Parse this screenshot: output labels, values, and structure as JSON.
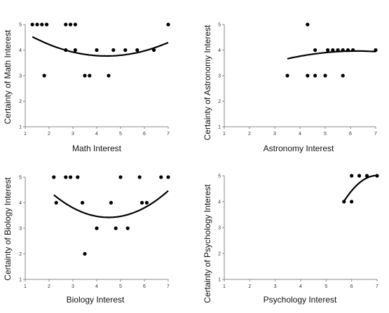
{
  "chart_data": [
    {
      "type": "scatter",
      "xlabel": "Math Interest",
      "ylabel": "Certainty of Math Interest",
      "xlim": [
        1,
        7
      ],
      "ylim": [
        1,
        5
      ],
      "xticks": [
        "1",
        "2",
        "3",
        "4",
        "5",
        "6",
        "7"
      ],
      "yticks": [
        "1",
        "2",
        "3",
        "4",
        "5"
      ],
      "points": [
        [
          1.3,
          5
        ],
        [
          1.5,
          5
        ],
        [
          1.7,
          5
        ],
        [
          1.9,
          5
        ],
        [
          2.7,
          5
        ],
        [
          2.9,
          5
        ],
        [
          3.1,
          5
        ],
        [
          1.8,
          3
        ],
        [
          2.7,
          4
        ],
        [
          3.1,
          4
        ],
        [
          3.5,
          3
        ],
        [
          3.7,
          3
        ],
        [
          4.0,
          4
        ],
        [
          4.5,
          3
        ],
        [
          4.7,
          4
        ],
        [
          5.2,
          4
        ],
        [
          5.7,
          4
        ],
        [
          6.4,
          4
        ],
        [
          7.0,
          5
        ]
      ],
      "trend": {
        "type": "quadratic",
        "xrange": [
          1.3,
          7
        ],
        "coef": [
          0.0781,
          -0.6875,
          5.2813
        ]
      }
    },
    {
      "type": "scatter",
      "xlabel": "Astronomy Interest",
      "ylabel": "Certainty of Astronomy Interest",
      "xlim": [
        1,
        7
      ],
      "ylim": [
        1,
        5
      ],
      "xticks": [
        "1",
        "2",
        "3",
        "4",
        "5",
        "6",
        "7"
      ],
      "yticks": [
        "1",
        "2",
        "3",
        "4",
        "5"
      ],
      "points": [
        [
          3.5,
          3
        ],
        [
          4.3,
          3
        ],
        [
          4.6,
          3
        ],
        [
          5.0,
          3
        ],
        [
          5.7,
          3
        ],
        [
          4.6,
          4
        ],
        [
          5.1,
          4
        ],
        [
          5.3,
          4
        ],
        [
          5.5,
          4
        ],
        [
          5.7,
          4
        ],
        [
          5.9,
          4
        ],
        [
          6.1,
          4
        ],
        [
          7.0,
          4
        ],
        [
          4.3,
          5
        ]
      ],
      "trend": {
        "type": "quadratic",
        "xrange": [
          3.5,
          7
        ],
        "coef": [
          -0.04,
          0.5,
          2.4
        ]
      }
    },
    {
      "type": "scatter",
      "xlabel": "Biology Interest",
      "ylabel": "Certainty of Biology Interest",
      "xlim": [
        1,
        7
      ],
      "ylim": [
        1,
        5
      ],
      "xticks": [
        "1",
        "2",
        "3",
        "4",
        "5",
        "6",
        "7"
      ],
      "yticks": [
        "1",
        "2",
        "3",
        "4",
        "5"
      ],
      "points": [
        [
          2.2,
          5
        ],
        [
          2.7,
          5
        ],
        [
          2.9,
          5
        ],
        [
          3.2,
          5
        ],
        [
          5.0,
          5
        ],
        [
          5.8,
          5
        ],
        [
          6.7,
          5
        ],
        [
          7.0,
          5
        ],
        [
          2.3,
          4
        ],
        [
          3.4,
          4
        ],
        [
          4.6,
          4
        ],
        [
          5.9,
          4
        ],
        [
          6.1,
          4
        ],
        [
          4.0,
          3
        ],
        [
          4.8,
          3
        ],
        [
          5.3,
          3
        ],
        [
          3.5,
          2
        ]
      ],
      "trend": {
        "type": "quadratic",
        "xrange": [
          2.2,
          7
        ],
        "coef": [
          0.1667,
          -1.5,
          6.8
        ]
      }
    },
    {
      "type": "scatter",
      "xlabel": "Psychology Interest",
      "ylabel": "Certainty of Psychology Interest",
      "xlim": [
        1,
        7
      ],
      "ylim": [
        1,
        5
      ],
      "xticks": [
        "1",
        "2",
        "3",
        "4",
        "5",
        "6",
        "7"
      ],
      "yticks": [
        "1",
        "2",
        "3",
        "4",
        "5"
      ],
      "points": [
        [
          5.7,
          4
        ],
        [
          6.0,
          4
        ],
        [
          6.0,
          5
        ],
        [
          6.3,
          5
        ],
        [
          6.6,
          5
        ],
        [
          7.0,
          5
        ]
      ],
      "trend": {
        "type": "quadratic",
        "xrange": [
          5.7,
          7
        ],
        "coef": [
          -0.59,
          8.26,
          -23.9
        ]
      }
    }
  ]
}
